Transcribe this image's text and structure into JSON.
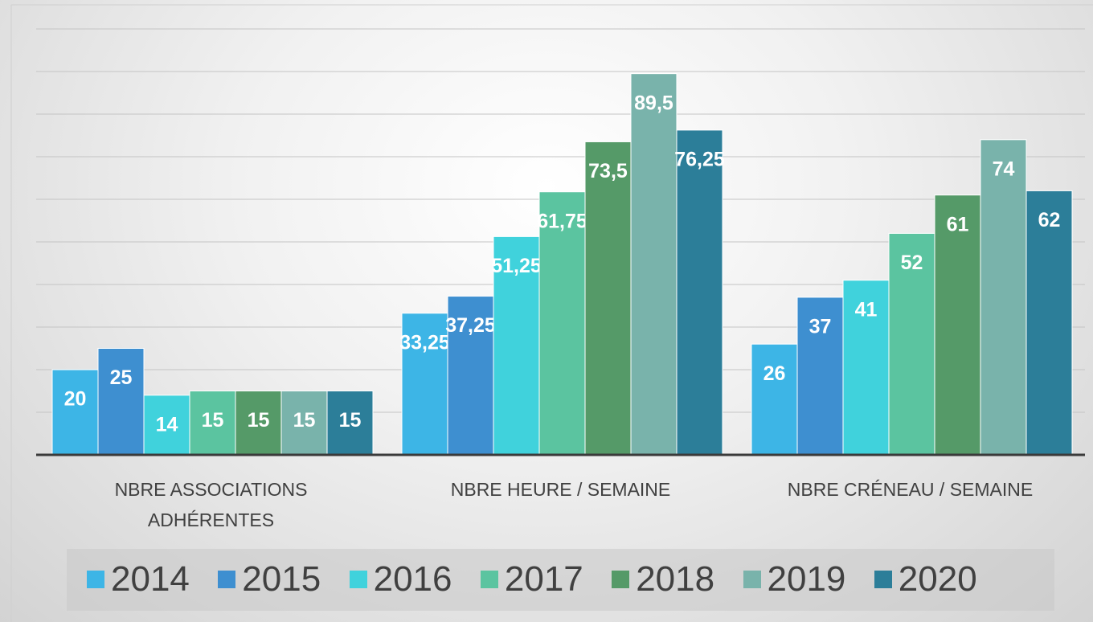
{
  "chart_data": {
    "type": "bar",
    "categories": [
      "NBRE ASSOCIATIONS ADHÉRENTES",
      "NBRE HEURE / SEMAINE",
      "NBRE CRÉNEAU / SEMAINE"
    ],
    "series": [
      {
        "name": "2014",
        "color": "#3db5e6",
        "values": [
          20,
          33.25,
          26
        ],
        "value_labels": [
          "20",
          "33,25",
          "26"
        ]
      },
      {
        "name": "2015",
        "color": "#3e8fd0",
        "values": [
          25,
          37.25,
          37
        ],
        "value_labels": [
          "25",
          "37,25",
          "37"
        ]
      },
      {
        "name": "2016",
        "color": "#40d2dc",
        "values": [
          14,
          51.25,
          41
        ],
        "value_labels": [
          "14",
          "51,25",
          "41"
        ]
      },
      {
        "name": "2017",
        "color": "#5bc4a0",
        "values": [
          15,
          61.75,
          52
        ],
        "value_labels": [
          "15",
          "61,75",
          "52"
        ]
      },
      {
        "name": "2018",
        "color": "#559a68",
        "values": [
          15,
          73.5,
          61
        ],
        "value_labels": [
          "15",
          "73,5",
          "61"
        ]
      },
      {
        "name": "2019",
        "color": "#79b3ab",
        "values": [
          15,
          89.5,
          74
        ],
        "value_labels": [
          "15",
          "89,5",
          "74"
        ]
      },
      {
        "name": "2020",
        "color": "#2c7e99",
        "values": [
          15,
          76.25,
          62
        ],
        "value_labels": [
          "15",
          "76,25",
          "62"
        ]
      }
    ],
    "ylim": [
      0,
      100
    ],
    "yticks": [
      0,
      10,
      20,
      30,
      40,
      50,
      60,
      70,
      80,
      90,
      100
    ],
    "grid": true,
    "legend": "bottom"
  }
}
